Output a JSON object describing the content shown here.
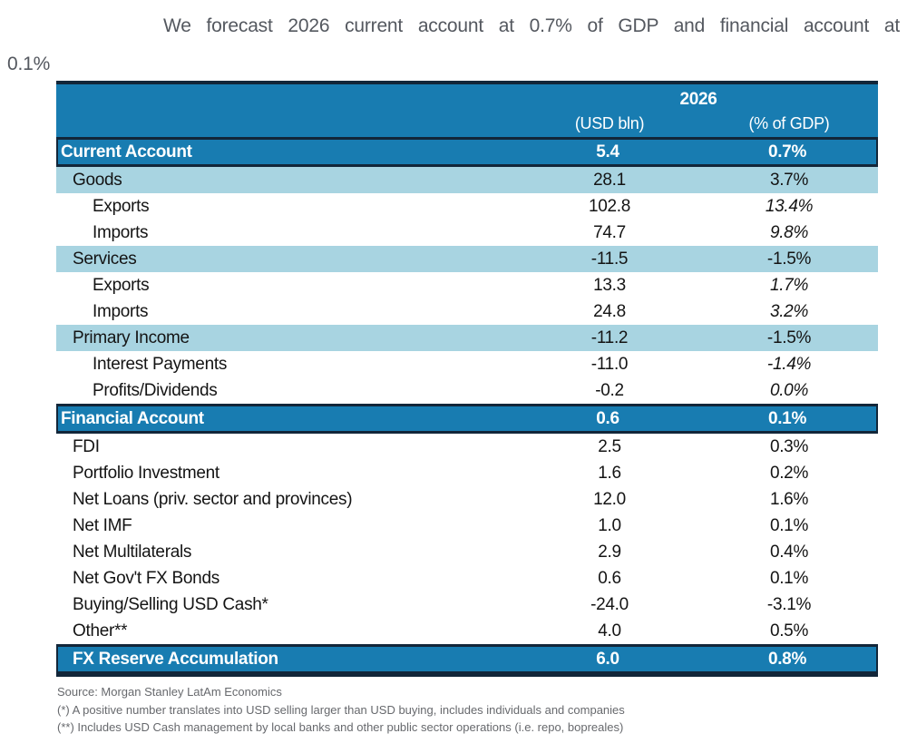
{
  "page": {
    "title_line1": "We forecast 2026 current account at 0.7% of GDP and financial account at",
    "title_line2": "0.1%"
  },
  "chart_data": {
    "type": "table",
    "title": "We forecast 2026 current account at 0.7% of GDP and financial account at 0.1%",
    "year_header": "2026",
    "columns": [
      "(USD bln)",
      "(% of GDP)"
    ],
    "rows": [
      {
        "label": "Current Account",
        "usd_bln": "5.4",
        "pct_gdp": "0.7%",
        "style": "section"
      },
      {
        "label": "Goods",
        "usd_bln": "28.1",
        "pct_gdp": "3.7%",
        "style": "subtotal"
      },
      {
        "label": "Exports",
        "usd_bln": "102.8",
        "pct_gdp": "13.4%",
        "style": "detail"
      },
      {
        "label": "Imports",
        "usd_bln": "74.7",
        "pct_gdp": "9.8%",
        "style": "detail"
      },
      {
        "label": "Services",
        "usd_bln": "-11.5",
        "pct_gdp": "-1.5%",
        "style": "subtotal"
      },
      {
        "label": "Exports",
        "usd_bln": "13.3",
        "pct_gdp": "1.7%",
        "style": "detail"
      },
      {
        "label": "Imports",
        "usd_bln": "24.8",
        "pct_gdp": "3.2%",
        "style": "detail"
      },
      {
        "label": "Primary Income",
        "usd_bln": "-11.2",
        "pct_gdp": "-1.5%",
        "style": "subtotal"
      },
      {
        "label": "Interest Payments",
        "usd_bln": "-11.0",
        "pct_gdp": "-1.4%",
        "style": "detail"
      },
      {
        "label": "Profits/Dividends",
        "usd_bln": "-0.2",
        "pct_gdp": "0.0%",
        "style": "detail"
      },
      {
        "label": "Financial Account",
        "usd_bln": "0.6",
        "pct_gdp": "0.1%",
        "style": "section"
      },
      {
        "label": "FDI",
        "usd_bln": "2.5",
        "pct_gdp": "0.3%",
        "style": "item"
      },
      {
        "label": "Portfolio Investment",
        "usd_bln": "1.6",
        "pct_gdp": "0.2%",
        "style": "item"
      },
      {
        "label": "Net Loans (priv. sector and provinces)",
        "usd_bln": "12.0",
        "pct_gdp": "1.6%",
        "style": "item"
      },
      {
        "label": "Net IMF",
        "usd_bln": "1.0",
        "pct_gdp": "0.1%",
        "style": "item"
      },
      {
        "label": "Net Multilaterals",
        "usd_bln": "2.9",
        "pct_gdp": "0.4%",
        "style": "item"
      },
      {
        "label": "Net Gov't FX Bonds",
        "usd_bln": "0.6",
        "pct_gdp": "0.1%",
        "style": "item"
      },
      {
        "label": "Buying/Selling USD Cash*",
        "usd_bln": "-24.0",
        "pct_gdp": "-3.1%",
        "style": "item"
      },
      {
        "label": "Other**",
        "usd_bln": "4.0",
        "pct_gdp": "0.5%",
        "style": "item"
      },
      {
        "label": "FX Reserve Accumulation",
        "usd_bln": "6.0",
        "pct_gdp": "0.8%",
        "style": "section-indent"
      }
    ],
    "footnotes": [
      "Source: Morgan Stanley LatAm Economics",
      "(*) A positive number translates into USD selling larger than USD buying, includes individuals and companies",
      "(**) Includes USD Cash management by local banks and other public sector operations (i.e. repo, bopreales)"
    ]
  },
  "colors": {
    "header_blue": "#187cb1",
    "band_blue": "#a8d4e1",
    "border_navy": "#122639",
    "title_gray": "#54585f",
    "footnote_gray": "#67696d"
  }
}
